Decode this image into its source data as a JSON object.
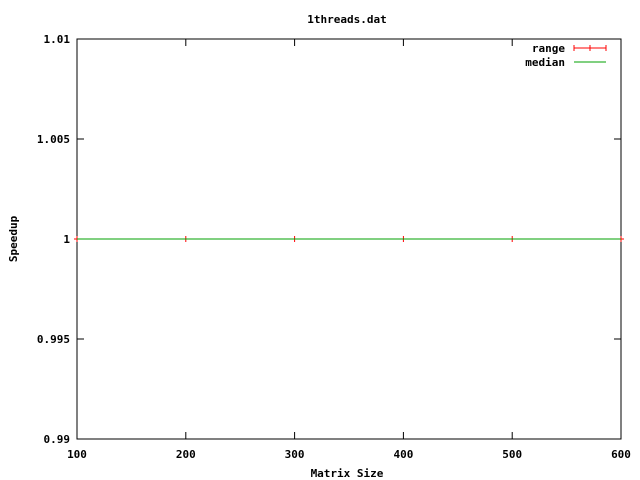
{
  "chart_data": {
    "type": "line",
    "title": "1threads.dat",
    "xlabel": "Matrix Size",
    "ylabel": "Speedup",
    "xlim": [
      100,
      600
    ],
    "ylim": [
      0.99,
      1.01
    ],
    "x_ticks": [
      100,
      200,
      300,
      400,
      500,
      600
    ],
    "x_tick_labels": [
      "100",
      "200",
      "300",
      "400",
      "500",
      "600"
    ],
    "y_ticks": [
      0.99,
      0.995,
      1.0,
      1.005,
      1.01
    ],
    "y_tick_labels": [
      "0.99",
      "0.995",
      "1",
      "1.005",
      "1.01"
    ],
    "grid": false,
    "legend_position": "top-right",
    "series": [
      {
        "name": "range",
        "style": "errorbars",
        "color": "#ff0000",
        "x": [
          100,
          200,
          300,
          400,
          500,
          600
        ],
        "y": [
          1,
          1,
          1,
          1,
          1,
          1
        ],
        "ymin": [
          1,
          1,
          1,
          1,
          1,
          1
        ],
        "ymax": [
          1,
          1,
          1,
          1,
          1,
          1
        ]
      },
      {
        "name": "median",
        "style": "line",
        "color": "#00a000",
        "x": [
          100,
          200,
          300,
          400,
          500,
          600
        ],
        "y": [
          1,
          1,
          1,
          1,
          1,
          1
        ]
      }
    ]
  }
}
